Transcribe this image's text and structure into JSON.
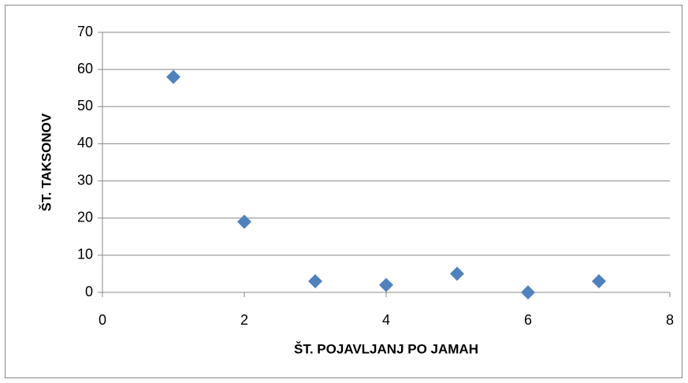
{
  "chart_data": {
    "type": "scatter",
    "x_label": "ŠT. POJAVLJANJ PO JAMAH",
    "y_label": "ŠT. TAKSONOV",
    "x": [
      1,
      2,
      3,
      4,
      5,
      6,
      7
    ],
    "series": [
      {
        "color": "#4f81bd",
        "values": [
          58,
          19,
          3,
          2,
          5,
          0,
          3
        ]
      }
    ],
    "xlim": [
      0,
      8
    ],
    "xticks": [
      0,
      2,
      4,
      6,
      8
    ],
    "ylim": [
      0,
      70
    ],
    "yticks": [
      0,
      10,
      20,
      30,
      40,
      50,
      60,
      70
    ],
    "grid": true
  }
}
